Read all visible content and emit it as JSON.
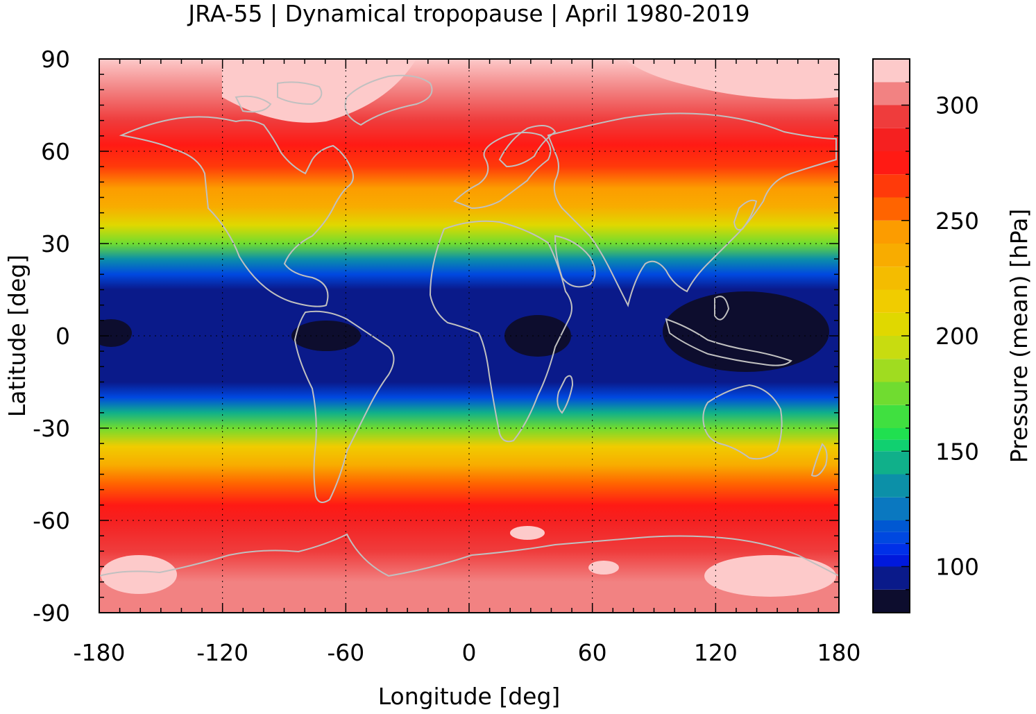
{
  "title": "JRA-55 | Dynamical tropopause | April 1980-2019",
  "map": {
    "xlabel": "Longitude [deg]",
    "ylabel": "Latitude [deg]",
    "xlim": [
      -180,
      180
    ],
    "ylim": [
      -90,
      90
    ],
    "xticks": [
      "-180",
      "-120",
      "-60",
      "0",
      "60",
      "120",
      "180"
    ],
    "yticks": [
      "90",
      "60",
      "30",
      "0",
      "-30",
      "-60",
      "-90"
    ],
    "grid": "dotted at 60° longitude and 30° latitude",
    "coastline_color": "#c0c0c0",
    "field": "mean dynamical tropopause pressure",
    "zonal_profile": [
      {
        "lat": 90,
        "value": 313
      },
      {
        "lat": 80,
        "value": 305
      },
      {
        "lat": 70,
        "value": 290
      },
      {
        "lat": 62,
        "value": 278
      },
      {
        "lat": 55,
        "value": 265
      },
      {
        "lat": 48,
        "value": 245
      },
      {
        "lat": 42,
        "value": 230
      },
      {
        "lat": 36,
        "value": 205
      },
      {
        "lat": 30,
        "value": 170
      },
      {
        "lat": 25,
        "value": 135
      },
      {
        "lat": 20,
        "value": 110
      },
      {
        "lat": 15,
        "value": 97
      },
      {
        "lat": 0,
        "value": 93
      },
      {
        "lat": -15,
        "value": 97
      },
      {
        "lat": -20,
        "value": 110
      },
      {
        "lat": -25,
        "value": 140
      },
      {
        "lat": -30,
        "value": 175
      },
      {
        "lat": -36,
        "value": 210
      },
      {
        "lat": -42,
        "value": 235
      },
      {
        "lat": -48,
        "value": 255
      },
      {
        "lat": -55,
        "value": 275
      },
      {
        "lat": -60,
        "value": 285
      },
      {
        "lat": -70,
        "value": 295
      },
      {
        "lat": -80,
        "value": 305
      },
      {
        "lat": -90,
        "value": 300
      }
    ]
  },
  "colorbar": {
    "label": "Pressure (mean) [hPa]",
    "ticks": [
      "300",
      "250",
      "200",
      "150",
      "100"
    ],
    "tick_values": [
      300,
      250,
      200,
      150,
      100
    ],
    "range": [
      80,
      320
    ],
    "levels": [
      {
        "from": 80,
        "to": 90,
        "color": "#0d0d2e"
      },
      {
        "from": 90,
        "to": 100,
        "color": "#0a1a8a"
      },
      {
        "from": 100,
        "to": 105,
        "color": "#0019dc"
      },
      {
        "from": 105,
        "to": 110,
        "color": "#0030e8"
      },
      {
        "from": 110,
        "to": 115,
        "color": "#0048e0"
      },
      {
        "from": 115,
        "to": 120,
        "color": "#0058d2"
      },
      {
        "from": 120,
        "to": 130,
        "color": "#0a78c0"
      },
      {
        "from": 130,
        "to": 140,
        "color": "#0c90a8"
      },
      {
        "from": 140,
        "to": 150,
        "color": "#10b08a"
      },
      {
        "from": 150,
        "to": 155,
        "color": "#10d070"
      },
      {
        "from": 155,
        "to": 160,
        "color": "#20e050"
      },
      {
        "from": 160,
        "to": 170,
        "color": "#40e040"
      },
      {
        "from": 170,
        "to": 180,
        "color": "#70dc30"
      },
      {
        "from": 180,
        "to": 190,
        "color": "#a0dc20"
      },
      {
        "from": 190,
        "to": 200,
        "color": "#c8dc10"
      },
      {
        "from": 200,
        "to": 210,
        "color": "#e0d800"
      },
      {
        "from": 210,
        "to": 220,
        "color": "#f0cc00"
      },
      {
        "from": 220,
        "to": 230,
        "color": "#f4bc00"
      },
      {
        "from": 230,
        "to": 240,
        "color": "#f8ac00"
      },
      {
        "from": 240,
        "to": 250,
        "color": "#fc9c00"
      },
      {
        "from": 250,
        "to": 260,
        "color": "#ff6400"
      },
      {
        "from": 260,
        "to": 270,
        "color": "#ff3a0a"
      },
      {
        "from": 270,
        "to": 280,
        "color": "#ff1a14"
      },
      {
        "from": 280,
        "to": 290,
        "color": "#f52020"
      },
      {
        "from": 290,
        "to": 300,
        "color": "#ef3c3c"
      },
      {
        "from": 300,
        "to": 310,
        "color": "#f28282"
      },
      {
        "from": 310,
        "to": 320,
        "color": "#fdcaca"
      }
    ]
  }
}
